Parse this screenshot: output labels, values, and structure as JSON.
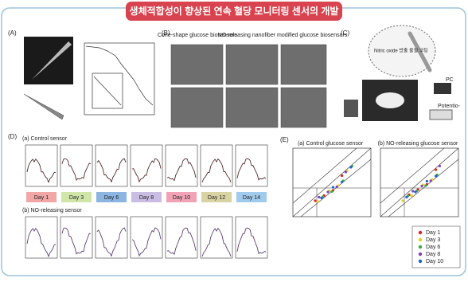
{
  "title": "생체적합성이 향상된 연속 혈당 모니터링 센서의 개발",
  "panel_labels": [
    "(A)",
    "(B)",
    "(C)",
    "(D)",
    "(E)"
  ],
  "panel_b": {
    "left_heading": "Cone-shape glucose biosensors",
    "right_heading": "NO-releasing nanofiber modified glucose biosensors"
  },
  "panel_c": {
    "callout": "Nitric oxide 방출 물질 코팅",
    "pc": "PC",
    "potentiostat": "Potentio-"
  },
  "panel_d": {
    "control": "(a) Control sensor",
    "no_releasing": "(b) NO-releasing sensor",
    "days": [
      {
        "name": "Day 1",
        "color": "#f2a7a7"
      },
      {
        "name": "Day 3",
        "color": "#cfe6a8"
      },
      {
        "name": "Day 6",
        "color": "#8db5e2"
      },
      {
        "name": "Day 8",
        "color": "#c9bde3"
      },
      {
        "name": "Day 10",
        "color": "#f1a3b5"
      },
      {
        "name": "Day 12",
        "color": "#d9d2a3"
      },
      {
        "name": "Day 14",
        "color": "#a1cbec"
      }
    ]
  },
  "panel_e": {
    "control": "(a) Control glucose sensor",
    "no_releasing": "(b) NO-releasing glucose sensor",
    "legend": [
      {
        "name": "Day 1",
        "color": "#e02020"
      },
      {
        "name": "Day 3",
        "color": "#e8d020"
      },
      {
        "name": "Day 6",
        "color": "#30b040"
      },
      {
        "name": "Day 8",
        "color": "#8040c0"
      },
      {
        "name": "Day 10",
        "color": "#2060d0"
      }
    ]
  }
}
